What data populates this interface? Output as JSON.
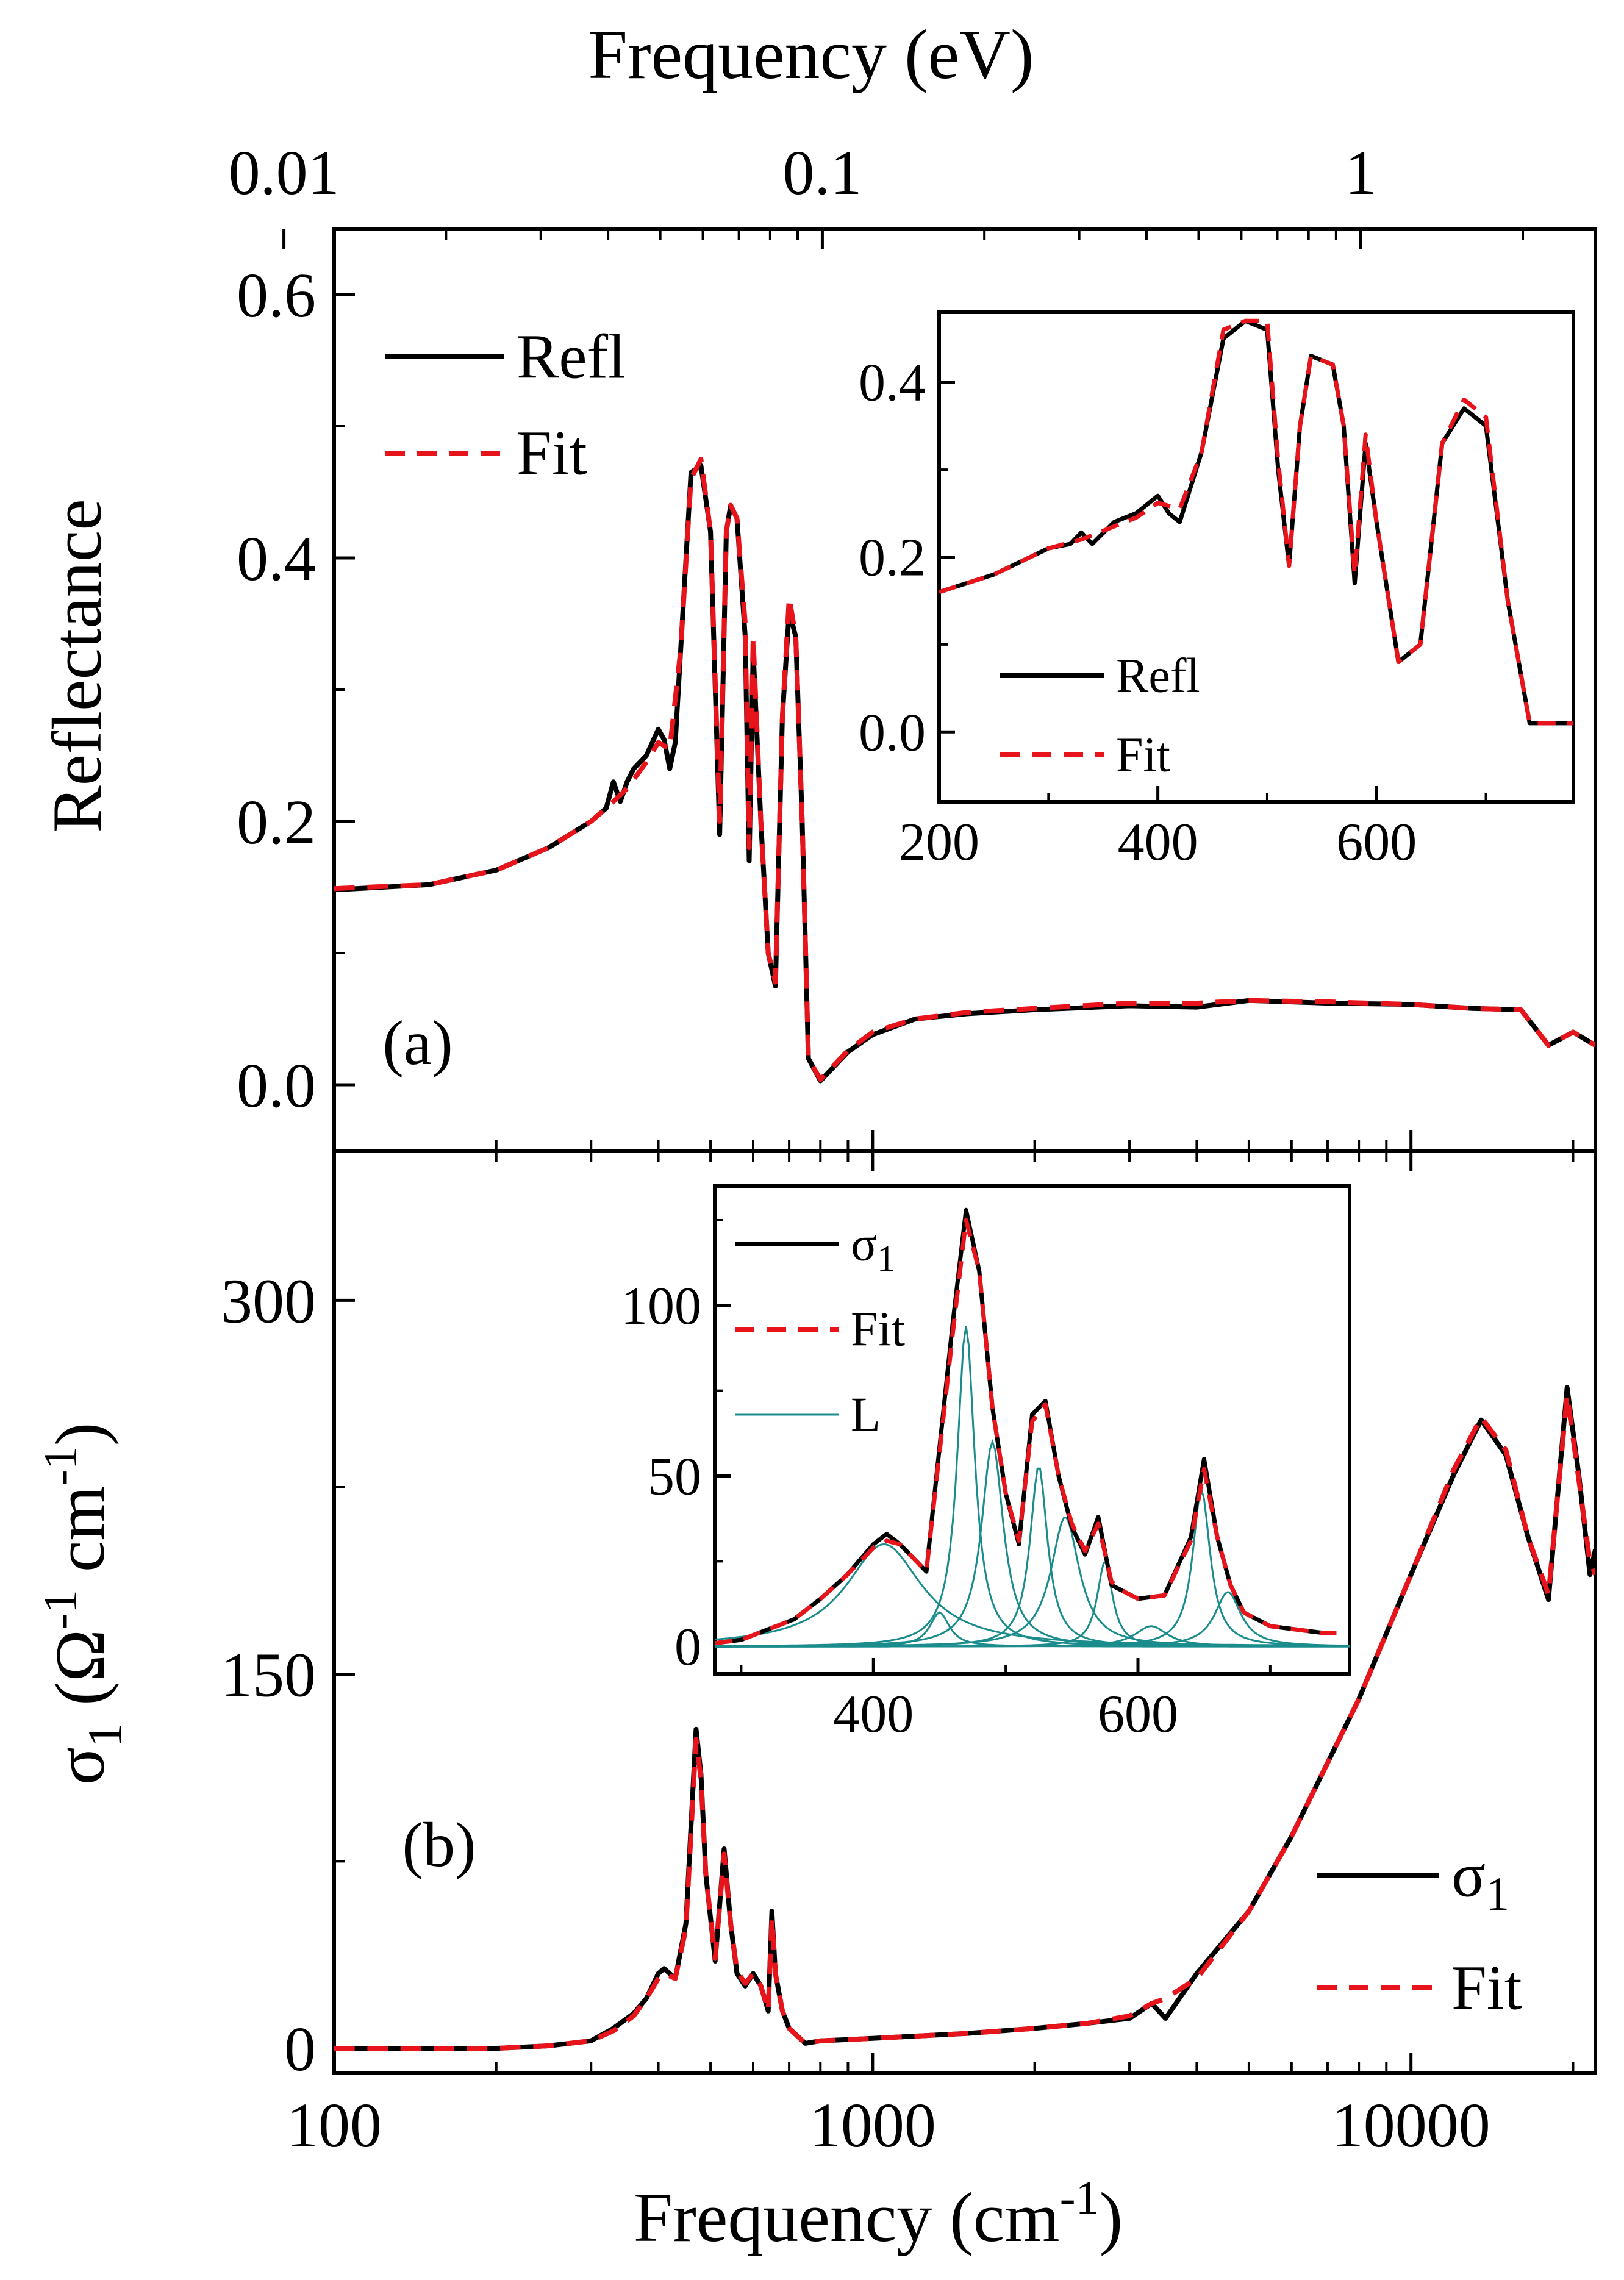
{
  "colors": {
    "data": "#000000",
    "fit": "#e8141b",
    "lorentz": "#1a8c8c"
  },
  "top_axis": {
    "label": "Frequency (eV)",
    "ticks": [
      "0.01",
      "0.1",
      "1"
    ],
    "tick_values": [
      0.01,
      0.1,
      1
    ]
  },
  "bottom_axis": {
    "label": "Frequency (cm",
    "label_sup": "-1",
    "label_close": ")",
    "ticks": [
      "100",
      "1000",
      "10000"
    ]
  },
  "chart_data": [
    {
      "panel": "(a)",
      "type": "line",
      "xscale": "log",
      "xlim": [
        100,
        22000
      ],
      "ylim": [
        -0.05,
        0.65
      ],
      "ylabel": "Reflectance",
      "xlabel": "Frequency (cm-1)",
      "yticks": [
        "0.0",
        "0.2",
        "0.4",
        "0.6"
      ],
      "ytick_values": [
        0,
        0.2,
        0.4,
        0.6
      ],
      "legend": {
        "position": "top-left",
        "entries": [
          "Refl",
          "Fit"
        ]
      },
      "series": [
        {
          "name": "Refl",
          "style": "solid",
          "x": [
            100,
            150,
            200,
            250,
            300,
            320,
            330,
            340,
            350,
            360,
            380,
            400,
            410,
            420,
            430,
            440,
            460,
            480,
            500,
            520,
            535,
            545,
            560,
            580,
            590,
            600,
            620,
            640,
            660,
            680,
            700,
            720,
            740,
            760,
            800,
            900,
            1000,
            1200,
            1500,
            2000,
            3000,
            4000,
            5000,
            7000,
            10000,
            13000,
            16000,
            18000,
            20000,
            22000
          ],
          "y": [
            0.148,
            0.152,
            0.163,
            0.18,
            0.2,
            0.21,
            0.23,
            0.215,
            0.23,
            0.24,
            0.25,
            0.27,
            0.262,
            0.24,
            0.26,
            0.33,
            0.465,
            0.47,
            0.42,
            0.19,
            0.42,
            0.44,
            0.43,
            0.34,
            0.17,
            0.33,
            0.2,
            0.1,
            0.075,
            0.28,
            0.36,
            0.34,
            0.2,
            0.02,
            0.003,
            0.025,
            0.038,
            0.05,
            0.054,
            0.057,
            0.06,
            0.059,
            0.064,
            0.062,
            0.061,
            0.058,
            0.057,
            0.03,
            0.04,
            0.03
          ]
        },
        {
          "name": "Fit",
          "style": "dashed",
          "x": [
            100,
            150,
            200,
            250,
            300,
            330,
            350,
            380,
            400,
            420,
            440,
            460,
            480,
            500,
            520,
            535,
            545,
            560,
            580,
            590,
            600,
            620,
            640,
            660,
            680,
            700,
            720,
            740,
            760,
            800,
            900,
            1000,
            1200,
            1500,
            2000,
            3000,
            4000,
            5000,
            7000,
            10000,
            13000,
            16000,
            18000,
            20000,
            22000
          ],
          "y": [
            0.149,
            0.152,
            0.163,
            0.18,
            0.2,
            0.215,
            0.225,
            0.245,
            0.26,
            0.255,
            0.33,
            0.46,
            0.475,
            0.42,
            0.2,
            0.42,
            0.44,
            0.43,
            0.35,
            0.18,
            0.34,
            0.2,
            0.1,
            0.078,
            0.28,
            0.37,
            0.34,
            0.2,
            0.02,
            0.004,
            0.026,
            0.04,
            0.05,
            0.055,
            0.058,
            0.062,
            0.062,
            0.064,
            0.063,
            0.061,
            0.058,
            0.057,
            0.03,
            0.04,
            0.03
          ]
        }
      ],
      "inset": {
        "type": "line",
        "xlim": [
          200,
          780
        ],
        "ylim": [
          -0.08,
          0.48
        ],
        "xticks": [
          "200",
          "400",
          "600"
        ],
        "xtick_values": [
          200,
          400,
          600
        ],
        "yticks": [
          "0.0",
          "0.2",
          "0.4"
        ],
        "ytick_values": [
          0,
          0.2,
          0.4
        ],
        "legend": {
          "position": "bottom-left",
          "entries": [
            "Refl",
            "Fit"
          ]
        },
        "series": [
          {
            "name": "Refl",
            "style": "solid",
            "x": [
              200,
              250,
              300,
              320,
              330,
              340,
              360,
              380,
              400,
              410,
              420,
              440,
              460,
              480,
              500,
              510,
              520,
              530,
              540,
              560,
              570,
              580,
              590,
              600,
              620,
              640,
              660,
              680,
              700,
              720,
              740,
              780
            ],
            "y": [
              0.16,
              0.18,
              0.21,
              0.215,
              0.228,
              0.215,
              0.24,
              0.25,
              0.27,
              0.25,
              0.24,
              0.32,
              0.45,
              0.47,
              0.46,
              0.3,
              0.19,
              0.35,
              0.43,
              0.42,
              0.35,
              0.17,
              0.33,
              0.24,
              0.08,
              0.1,
              0.33,
              0.37,
              0.35,
              0.15,
              0.01,
              0.01
            ]
          },
          {
            "name": "Fit",
            "style": "dashed",
            "x": [
              200,
              250,
              300,
              330,
              360,
              380,
              400,
              420,
              440,
              460,
              480,
              500,
              510,
              520,
              530,
              540,
              560,
              570,
              580,
              590,
              600,
              620,
              640,
              660,
              680,
              700,
              720,
              740,
              780
            ],
            "y": [
              0.16,
              0.18,
              0.21,
              0.22,
              0.235,
              0.245,
              0.262,
              0.255,
              0.32,
              0.46,
              0.47,
              0.47,
              0.31,
              0.19,
              0.35,
              0.43,
              0.42,
              0.35,
              0.18,
              0.34,
              0.24,
              0.08,
              0.1,
              0.33,
              0.38,
              0.36,
              0.15,
              0.01,
              0.01
            ]
          }
        ]
      }
    },
    {
      "panel": "(b)",
      "type": "line",
      "xscale": "log",
      "xlim": [
        100,
        22000
      ],
      "ylim": [
        -10,
        360
      ],
      "ylabel": "σ1 (Ω-1 cm-1)",
      "xlabel": "Frequency (cm-1)",
      "yticks": [
        "0",
        "150",
        "300"
      ],
      "ytick_values": [
        0,
        150,
        300
      ],
      "legend": {
        "position": "bottom-right",
        "entries": [
          "σ1",
          "Fit"
        ]
      },
      "series": [
        {
          "name": "σ1",
          "style": "solid",
          "x": [
            100,
            200,
            250,
            300,
            330,
            360,
            380,
            400,
            410,
            430,
            450,
            470,
            480,
            490,
            510,
            530,
            545,
            560,
            580,
            600,
            620,
            640,
            650,
            660,
            680,
            700,
            750,
            800,
            1000,
            1500,
            2000,
            2500,
            3000,
            3300,
            3500,
            4000,
            5000,
            6000,
            8000,
            10000,
            12000,
            13500,
            15000,
            16500,
            18000,
            19500,
            20500,
            21500,
            22000
          ],
          "y": [
            0,
            0,
            1,
            3,
            8,
            14,
            20,
            30,
            32,
            28,
            50,
            128,
            110,
            70,
            35,
            80,
            50,
            30,
            25,
            30,
            25,
            15,
            55,
            30,
            15,
            8,
            2,
            3,
            4,
            6,
            8,
            10,
            12,
            18,
            12,
            30,
            55,
            85,
            140,
            190,
            230,
            252,
            238,
            205,
            180,
            265,
            230,
            190,
            200
          ]
        },
        {
          "name": "Fit",
          "style": "dashed",
          "x": [
            100,
            200,
            250,
            300,
            330,
            360,
            380,
            400,
            410,
            430,
            450,
            470,
            480,
            490,
            510,
            530,
            545,
            560,
            580,
            600,
            620,
            640,
            650,
            660,
            680,
            700,
            750,
            800,
            1000,
            1500,
            2000,
            2500,
            3000,
            3300,
            3500,
            4000,
            5000,
            6000,
            8000,
            10000,
            12000,
            13500,
            15000,
            16500,
            18000,
            19500,
            20500,
            21500,
            22000
          ],
          "y": [
            0,
            0,
            1,
            3,
            7,
            13,
            20,
            28,
            30,
            28,
            48,
            124,
            108,
            70,
            36,
            78,
            50,
            31,
            26,
            30,
            25,
            15,
            52,
            30,
            15,
            8,
            2,
            3,
            4,
            6,
            8,
            10,
            13,
            18,
            20,
            28,
            55,
            85,
            140,
            190,
            232,
            253,
            240,
            205,
            182,
            262,
            228,
            195,
            190
          ]
        }
      ],
      "inset": {
        "type": "line",
        "xlim": [
          280,
          760
        ],
        "ylim": [
          -8,
          135
        ],
        "xticks": [
          "400",
          "600"
        ],
        "xtick_values": [
          400,
          600
        ],
        "yticks": [
          "0",
          "50",
          "100"
        ],
        "ytick_values": [
          0,
          50,
          100
        ],
        "legend": {
          "position": "top-left",
          "entries": [
            "σ1",
            "Fit",
            "L"
          ]
        },
        "series": [
          {
            "name": "σ1",
            "style": "solid",
            "x": [
              280,
              300,
              320,
              340,
              360,
              380,
              400,
              410,
              420,
              440,
              460,
              470,
              480,
              490,
              500,
              510,
              520,
              530,
              540,
              550,
              560,
              570,
              580,
              590,
              600,
              620,
              640,
              650,
              660,
              670,
              680,
              700,
              720,
              740,
              750
            ],
            "y": [
              1,
              2,
              5,
              8,
              14,
              21,
              30,
              33,
              30,
              22,
              95,
              128,
              110,
              70,
              45,
              30,
              68,
              72,
              50,
              35,
              27,
              38,
              18,
              16,
              14,
              15,
              32,
              55,
              32,
              18,
              10,
              6,
              5,
              4,
              4
            ]
          },
          {
            "name": "Fit",
            "style": "dashed",
            "x": [
              280,
              300,
              320,
              340,
              360,
              380,
              400,
              410,
              420,
              440,
              460,
              470,
              480,
              490,
              500,
              510,
              520,
              530,
              540,
              550,
              560,
              570,
              580,
              590,
              600,
              620,
              640,
              650,
              660,
              670,
              680,
              700,
              720,
              740,
              750
            ],
            "y": [
              1,
              2,
              5,
              8,
              14,
              21,
              29,
              31,
              30,
              22,
              92,
              125,
              110,
              70,
              45,
              31,
              66,
              71,
              50,
              36,
              28,
              36,
              19,
              16,
              14,
              15,
              31,
              52,
              32,
              18,
              10,
              6,
              5,
              4,
              4
            ]
          }
        ],
        "lorentz_components": [
          {
            "x0": 408,
            "gamma": 70,
            "amp": 30
          },
          {
            "x0": 450,
            "gamma": 18,
            "amp": 10
          },
          {
            "x0": 470,
            "gamma": 16,
            "amp": 94
          },
          {
            "x0": 490,
            "gamma": 20,
            "amp": 60
          },
          {
            "x0": 525,
            "gamma": 16,
            "amp": 53
          },
          {
            "x0": 545,
            "gamma": 26,
            "amp": 38
          },
          {
            "x0": 575,
            "gamma": 14,
            "amp": 25
          },
          {
            "x0": 610,
            "gamma": 30,
            "amp": 6
          },
          {
            "x0": 648,
            "gamma": 16,
            "amp": 46
          },
          {
            "x0": 668,
            "gamma": 24,
            "amp": 16
          }
        ]
      }
    }
  ]
}
